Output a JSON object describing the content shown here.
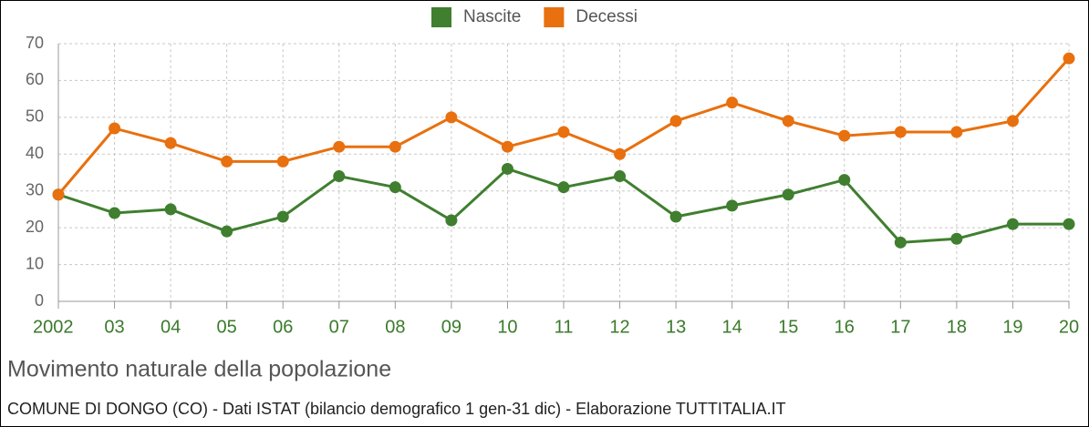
{
  "chart_data": {
    "type": "line",
    "title": "Movimento naturale della popolazione",
    "subtitle": "COMUNE DI DONGO (CO) - Dati ISTAT (bilancio demografico 1 gen-31 dic) - Elaborazione TUTTITALIA.IT",
    "categories": [
      "2002",
      "03",
      "04",
      "05",
      "06",
      "07",
      "08",
      "09",
      "10",
      "11",
      "12",
      "13",
      "14",
      "15",
      "16",
      "17",
      "18",
      "19",
      "20"
    ],
    "series": [
      {
        "name": "Nascite",
        "color": "#3f7f2f",
        "values": [
          29,
          24,
          25,
          19,
          23,
          34,
          31,
          22,
          36,
          31,
          34,
          23,
          26,
          29,
          33,
          16,
          17,
          21,
          21
        ]
      },
      {
        "name": "Decessi",
        "color": "#e8700e",
        "values": [
          29,
          47,
          43,
          38,
          38,
          42,
          42,
          50,
          42,
          46,
          40,
          49,
          54,
          49,
          45,
          46,
          46,
          49,
          66
        ]
      }
    ],
    "ylim": [
      0,
      70
    ],
    "yticks": [
      0,
      10,
      20,
      30,
      40,
      50,
      60,
      70
    ],
    "grid": true,
    "legend": "top"
  }
}
